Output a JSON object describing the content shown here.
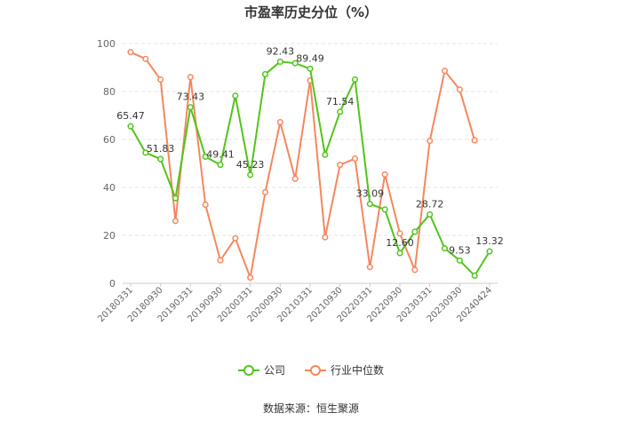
{
  "chart_data": {
    "type": "line",
    "title": "市盈率历史分位（%）",
    "source": "数据来源：恒生聚源",
    "ylim": [
      0,
      100
    ],
    "yticks": [
      0,
      20,
      40,
      60,
      80,
      100
    ],
    "grid": true,
    "legend_position": "bottom",
    "x_tick_labels": [
      "20180331",
      "20180930",
      "20190331",
      "20190930",
      "20200331",
      "20200930",
      "20210331",
      "20210930",
      "20220331",
      "20220930",
      "20230331",
      "20230930",
      "20240424"
    ],
    "x": [
      "20180331",
      "20180630",
      "20180930",
      "20181231",
      "20190331",
      "20190630",
      "20190930",
      "20191231",
      "20200331",
      "20200630",
      "20200930",
      "20201231",
      "20210331",
      "20210630",
      "20210930",
      "20211231",
      "20220331",
      "20220630",
      "20220930",
      "20221231",
      "20230331",
      "20230630",
      "20230930",
      "20231231",
      "20240424"
    ],
    "series": [
      {
        "name": "公司",
        "color": "#52c41a",
        "values": [
          65.47,
          54.5,
          51.83,
          35.5,
          73.43,
          52.8,
          49.41,
          78.2,
          45.23,
          87.2,
          92.43,
          91.8,
          89.49,
          53.6,
          71.54,
          85.0,
          33.09,
          30.8,
          12.6,
          21.5,
          28.72,
          14.6,
          9.53,
          3.2,
          13.32
        ],
        "labels": {
          "0": "65.47",
          "2": "51.83",
          "4": "73.43",
          "6": "49.41",
          "8": "45.23",
          "10": "92.43",
          "12": "89.49",
          "14": "71.54",
          "16": "33.09",
          "18": "12.60",
          "20": "28.72",
          "22": "9.53",
          "24": "13.32"
        }
      },
      {
        "name": "行业中位数",
        "color": "#f5875e",
        "values": [
          96.4,
          93.6,
          85.0,
          26.0,
          86.0,
          32.8,
          9.6,
          18.8,
          2.4,
          38.0,
          67.2,
          43.6,
          84.6,
          19.2,
          49.4,
          52.0,
          6.8,
          45.4,
          20.8,
          5.6,
          59.4,
          88.6,
          80.8,
          59.6,
          null
        ]
      }
    ]
  }
}
